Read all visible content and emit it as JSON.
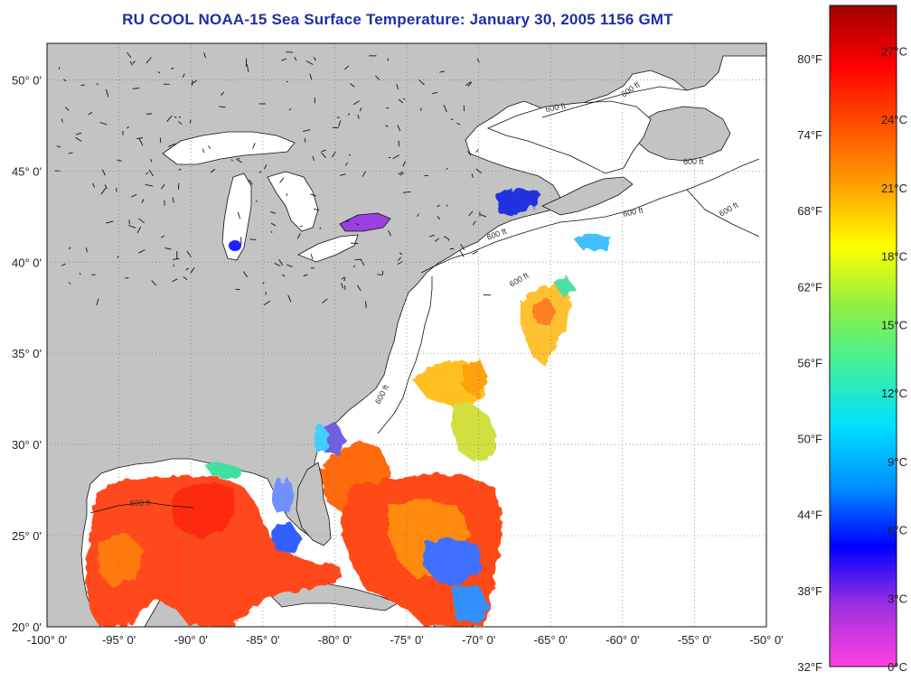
{
  "title": "RU COOL  NOAA-15  Sea Surface Temperature:  January 30, 2005 1156 GMT",
  "map": {
    "lon_range": [
      -100,
      -50
    ],
    "lat_range": [
      20,
      52
    ],
    "lon_ticks": [
      {
        "value": -100,
        "label": "-100° 0'"
      },
      {
        "value": -95,
        "label": "-95° 0'"
      },
      {
        "value": -90,
        "label": "-90° 0'"
      },
      {
        "value": -85,
        "label": "-85° 0'"
      },
      {
        "value": -80,
        "label": "-80° 0'"
      },
      {
        "value": -75,
        "label": "-75° 0'"
      },
      {
        "value": -70,
        "label": "-70° 0'"
      },
      {
        "value": -65,
        "label": "-65° 0'"
      },
      {
        "value": -60,
        "label": "-60° 0'"
      },
      {
        "value": -55,
        "label": "-55° 0'"
      },
      {
        "value": -50,
        "label": "-50° 0'"
      }
    ],
    "lat_ticks": [
      {
        "value": 20,
        "label": "20° 0'"
      },
      {
        "value": 25,
        "label": "25° 0'"
      },
      {
        "value": 30,
        "label": "30° 0'"
      },
      {
        "value": 35,
        "label": "35° 0'"
      },
      {
        "value": 40,
        "label": "40° 0'"
      },
      {
        "value": 45,
        "label": "45° 0'"
      },
      {
        "value": 50,
        "label": "50° 0'"
      }
    ],
    "contour_label": "600 ft",
    "colors": {
      "land": "#c3c3c3",
      "no_data": "#ffffff",
      "grid": "#777777"
    }
  },
  "colorbar": {
    "range_c": [
      0,
      29
    ],
    "celsius_ticks": [
      {
        "value": 0,
        "label": "0°C"
      },
      {
        "value": 3,
        "label": "3°C"
      },
      {
        "value": 6,
        "label": "6°C"
      },
      {
        "value": 9,
        "label": "9°C"
      },
      {
        "value": 12,
        "label": "12°C"
      },
      {
        "value": 15,
        "label": "15°C"
      },
      {
        "value": 18,
        "label": "18°C"
      },
      {
        "value": 21,
        "label": "21°C"
      },
      {
        "value": 24,
        "label": "24°C"
      },
      {
        "value": 27,
        "label": "27°C"
      }
    ],
    "fahrenheit_ticks": [
      {
        "value": 32,
        "label": "32°F"
      },
      {
        "value": 38,
        "label": "38°F"
      },
      {
        "value": 44,
        "label": "44°F"
      },
      {
        "value": 50,
        "label": "50°F"
      },
      {
        "value": 56,
        "label": "56°F"
      },
      {
        "value": 62,
        "label": "62°F"
      },
      {
        "value": 68,
        "label": "68°F"
      },
      {
        "value": 74,
        "label": "74°F"
      },
      {
        "value": 80,
        "label": "80°F"
      }
    ],
    "stops": [
      "#ff40e0",
      "#a030e0",
      "#0000ff",
      "#0090ff",
      "#00e0ff",
      "#40f0a0",
      "#90f040",
      "#ffff00",
      "#ffa000",
      "#ff5000",
      "#ff0000",
      "#a00000"
    ]
  }
}
